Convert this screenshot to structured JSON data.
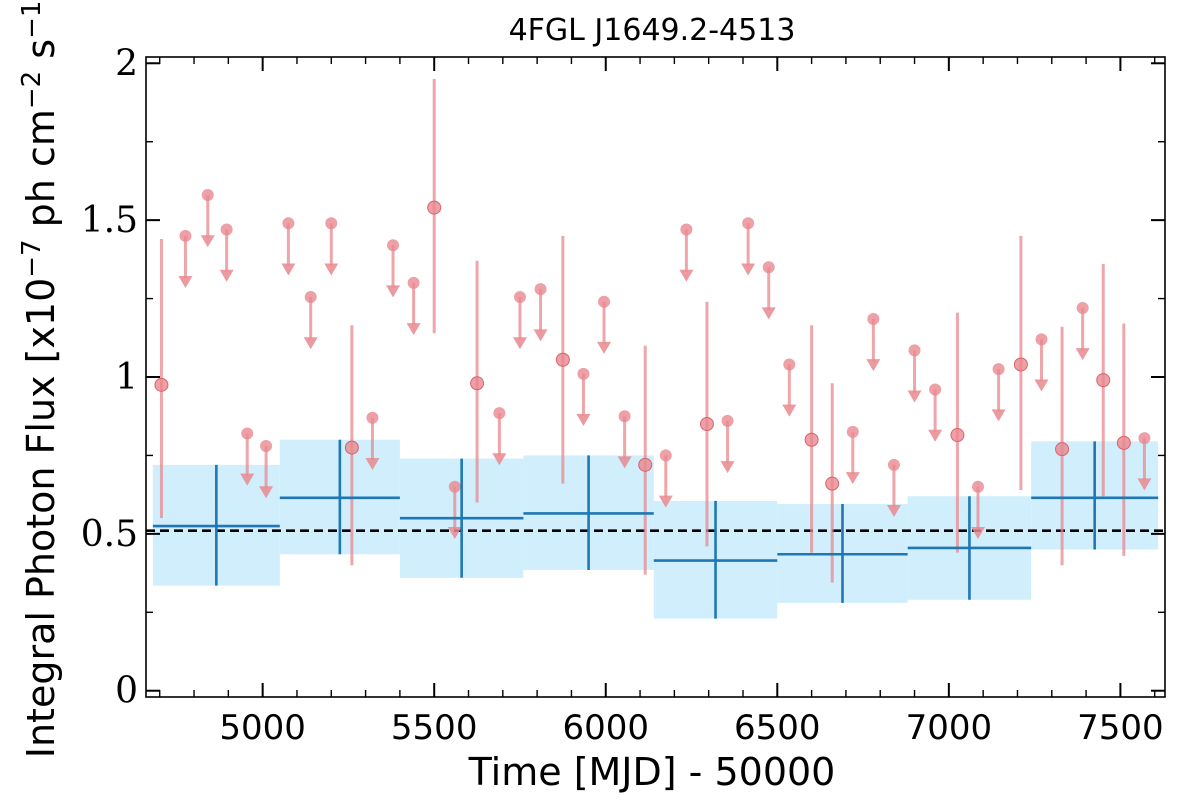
{
  "chart_data": {
    "type": "scatter",
    "title": "4FGL J1649.2-4513",
    "xlabel": "Time [MJD] - 50000",
    "ylabel": "Integral Photon Flux [x10",
    "ylabel_exp1": "−7",
    "ylabel_mid": " ph cm",
    "ylabel_exp2": "−2",
    "ylabel_mid2": " s",
    "ylabel_exp3": "−1",
    "ylabel_end": "]",
    "xlim": [
      4660,
      7630
    ],
    "ylim": [
      -0.02,
      2.02
    ],
    "x_ticks": [
      5000,
      5500,
      6000,
      6500,
      7000,
      7500
    ],
    "x_tick_labels": [
      "5000",
      "5500",
      "6000",
      "6500",
      "7000",
      "7500"
    ],
    "y_ticks": [
      0,
      0.5,
      1,
      1.5,
      2
    ],
    "y_tick_labels": [
      "0",
      "0.5",
      "1",
      "1.5",
      "2"
    ],
    "mean_flux": 0.51,
    "colors": {
      "points": "#e8888e",
      "bins": "#1f77b4",
      "band": "#d0eefc",
      "mean": "#000000"
    },
    "long_bins": [
      {
        "x0": 4680,
        "x1": 5050,
        "y": 0.525,
        "lo": 0.335,
        "hi": 0.72
      },
      {
        "x0": 5050,
        "x1": 5400,
        "y": 0.615,
        "lo": 0.435,
        "hi": 0.8
      },
      {
        "x0": 5400,
        "x1": 5760,
        "y": 0.55,
        "lo": 0.36,
        "hi": 0.74
      },
      {
        "x0": 5760,
        "x1": 6140,
        "y": 0.565,
        "lo": 0.385,
        "hi": 0.75
      },
      {
        "x0": 6140,
        "x1": 6500,
        "y": 0.415,
        "lo": 0.23,
        "hi": 0.605
      },
      {
        "x0": 6500,
        "x1": 6880,
        "y": 0.435,
        "lo": 0.28,
        "hi": 0.595
      },
      {
        "x0": 6880,
        "x1": 7240,
        "y": 0.455,
        "lo": 0.29,
        "hi": 0.62
      },
      {
        "x0": 7240,
        "x1": 7610,
        "y": 0.615,
        "lo": 0.45,
        "hi": 0.795
      }
    ],
    "detections": [
      {
        "x": 4705,
        "y": 0.975,
        "lo": 0.55,
        "hi": 1.44
      },
      {
        "x": 5260,
        "y": 0.775,
        "lo": 0.4,
        "hi": 1.165
      },
      {
        "x": 5500,
        "y": 1.54,
        "lo": 1.14,
        "hi": 1.95
      },
      {
        "x": 5625,
        "y": 0.98,
        "lo": 0.6,
        "hi": 1.37
      },
      {
        "x": 5875,
        "y": 1.055,
        "lo": 0.66,
        "hi": 1.45
      },
      {
        "x": 6115,
        "y": 0.72,
        "lo": 0.37,
        "hi": 1.1
      },
      {
        "x": 6295,
        "y": 0.85,
        "lo": 0.46,
        "hi": 1.24
      },
      {
        "x": 6600,
        "y": 0.8,
        "lo": 0.44,
        "hi": 1.165
      },
      {
        "x": 6660,
        "y": 0.66,
        "lo": 0.345,
        "hi": 0.98
      },
      {
        "x": 7025,
        "y": 0.815,
        "lo": 0.44,
        "hi": 1.205
      },
      {
        "x": 7210,
        "y": 1.04,
        "lo": 0.64,
        "hi": 1.45
      },
      {
        "x": 7330,
        "y": 0.77,
        "lo": 0.4,
        "hi": 1.16
      },
      {
        "x": 7450,
        "y": 0.99,
        "lo": 0.62,
        "hi": 1.36
      },
      {
        "x": 7510,
        "y": 0.79,
        "lo": 0.43,
        "hi": 1.17
      }
    ],
    "upper_limits": [
      {
        "x": 4775,
        "y": 1.45
      },
      {
        "x": 4840,
        "y": 1.58
      },
      {
        "x": 4895,
        "y": 1.47
      },
      {
        "x": 4955,
        "y": 0.82
      },
      {
        "x": 5010,
        "y": 0.78
      },
      {
        "x": 5075,
        "y": 1.49
      },
      {
        "x": 5140,
        "y": 1.255
      },
      {
        "x": 5200,
        "y": 1.49
      },
      {
        "x": 5320,
        "y": 0.87
      },
      {
        "x": 5380,
        "y": 1.42
      },
      {
        "x": 5440,
        "y": 1.3
      },
      {
        "x": 5560,
        "y": 0.65
      },
      {
        "x": 5690,
        "y": 0.885
      },
      {
        "x": 5750,
        "y": 1.255
      },
      {
        "x": 5810,
        "y": 1.28
      },
      {
        "x": 5935,
        "y": 1.01
      },
      {
        "x": 5995,
        "y": 1.24
      },
      {
        "x": 6055,
        "y": 0.875
      },
      {
        "x": 6175,
        "y": 0.75
      },
      {
        "x": 6235,
        "y": 1.47
      },
      {
        "x": 6355,
        "y": 0.86
      },
      {
        "x": 6415,
        "y": 1.49
      },
      {
        "x": 6475,
        "y": 1.35
      },
      {
        "x": 6535,
        "y": 1.04
      },
      {
        "x": 6720,
        "y": 0.825
      },
      {
        "x": 6780,
        "y": 1.185
      },
      {
        "x": 6840,
        "y": 0.72
      },
      {
        "x": 6900,
        "y": 1.085
      },
      {
        "x": 6960,
        "y": 0.96
      },
      {
        "x": 7085,
        "y": 0.65
      },
      {
        "x": 7145,
        "y": 1.025
      },
      {
        "x": 7270,
        "y": 1.12
      },
      {
        "x": 7390,
        "y": 1.22
      },
      {
        "x": 7570,
        "y": 0.805
      }
    ],
    "upper_limit_arrow_length": 0.16,
    "grid": false,
    "legend": "none"
  }
}
